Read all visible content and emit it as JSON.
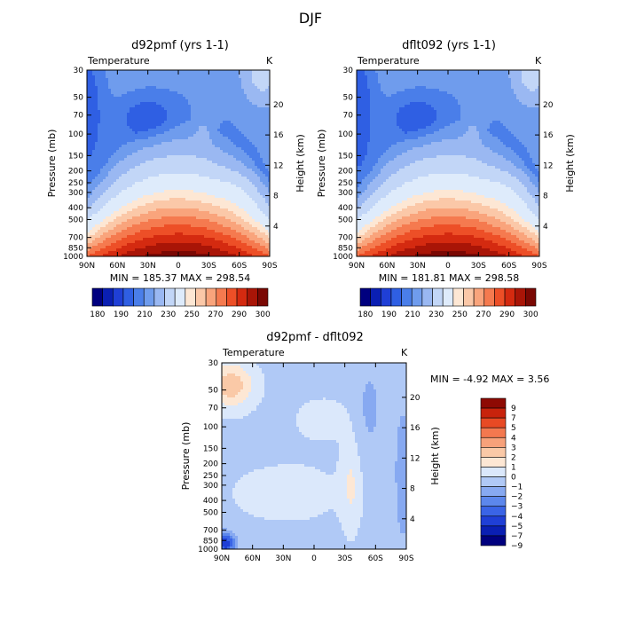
{
  "figure": {
    "title": "DJF"
  },
  "chart_data": [
    {
      "type": "heatmap",
      "title": "d92pmf (yrs 1-1)",
      "left_label": "Temperature",
      "right_label": "K",
      "xlabel": "",
      "ylabel": "Pressure (mb)",
      "ylabel_right": "Height (km)",
      "x_ticks": [
        "90N",
        "60N",
        "30N",
        "0",
        "30S",
        "60S",
        "90S"
      ],
      "y_ticks": [
        "30",
        "50",
        "70",
        "100",
        "150",
        "200",
        "250",
        "300",
        "400",
        "500",
        "700",
        "850",
        "1000"
      ],
      "y_right_ticks": [
        "20",
        "16",
        "12",
        "8",
        "4"
      ],
      "stats": "MIN = 185.37   MAX = 298.54",
      "min": 185.37,
      "max": 298.54,
      "colorbar_labels": [
        "180",
        "190",
        "210",
        "230",
        "250",
        "270",
        "290",
        "300"
      ],
      "colorbar_orientation": "horizontal"
    },
    {
      "type": "heatmap",
      "title": "dflt092 (yrs 1-1)",
      "left_label": "Temperature",
      "right_label": "K",
      "xlabel": "",
      "ylabel": "Pressure (mb)",
      "ylabel_right": "Height (km)",
      "x_ticks": [
        "90N",
        "60N",
        "30N",
        "0",
        "30S",
        "60S",
        "90S"
      ],
      "y_ticks": [
        "30",
        "50",
        "70",
        "100",
        "150",
        "200",
        "250",
        "300",
        "400",
        "500",
        "700",
        "850",
        "1000"
      ],
      "y_right_ticks": [
        "20",
        "16",
        "12",
        "8",
        "4"
      ],
      "stats": "MIN = 181.81   MAX = 298.58",
      "min": 181.81,
      "max": 298.58,
      "colorbar_labels": [
        "180",
        "190",
        "210",
        "230",
        "250",
        "270",
        "290",
        "300"
      ],
      "colorbar_orientation": "horizontal"
    },
    {
      "type": "heatmap",
      "title": "d92pmf - dflt092",
      "left_label": "Temperature",
      "right_label": "K",
      "xlabel": "",
      "ylabel": "Pressure (mb)",
      "ylabel_right": "Height (km)",
      "x_ticks": [
        "90N",
        "60N",
        "30N",
        "0",
        "30S",
        "60S",
        "90S"
      ],
      "y_ticks": [
        "30",
        "50",
        "70",
        "100",
        "150",
        "200",
        "250",
        "300",
        "400",
        "500",
        "700",
        "850",
        "1000"
      ],
      "y_right_ticks": [
        "20",
        "16",
        "12",
        "8",
        "4"
      ],
      "stats": "MIN =   -4.92   MAX =    3.56",
      "min": -4.92,
      "max": 3.56,
      "colorbar_labels": [
        "9",
        "7",
        "5",
        "4",
        "3",
        "2",
        "1",
        "0",
        "-1",
        "-2",
        "-3",
        "-4",
        "-5",
        "-7",
        "-9"
      ],
      "colorbar_orientation": "vertical"
    }
  ],
  "palettes": {
    "temperature": [
      "#00007f",
      "#0a1fb3",
      "#1f3fd6",
      "#2f5fe3",
      "#4a7ee9",
      "#6f9ced",
      "#9ab8f2",
      "#c2d6f7",
      "#deebfb",
      "#fde7d4",
      "#fbc8a8",
      "#f9a47c",
      "#f57a4f",
      "#ed4f27",
      "#d42a10",
      "#a91507",
      "#7a0803"
    ],
    "difference": [
      "#00007f",
      "#0a1fb3",
      "#1f3fd6",
      "#3a64e6",
      "#5c87ec",
      "#87a9f1",
      "#b0c9f6",
      "#dbe8fb",
      "#fde7d4",
      "#fac9a7",
      "#f7a17a",
      "#f3784f",
      "#e84a24",
      "#c8230c",
      "#8e0a03"
    ]
  }
}
